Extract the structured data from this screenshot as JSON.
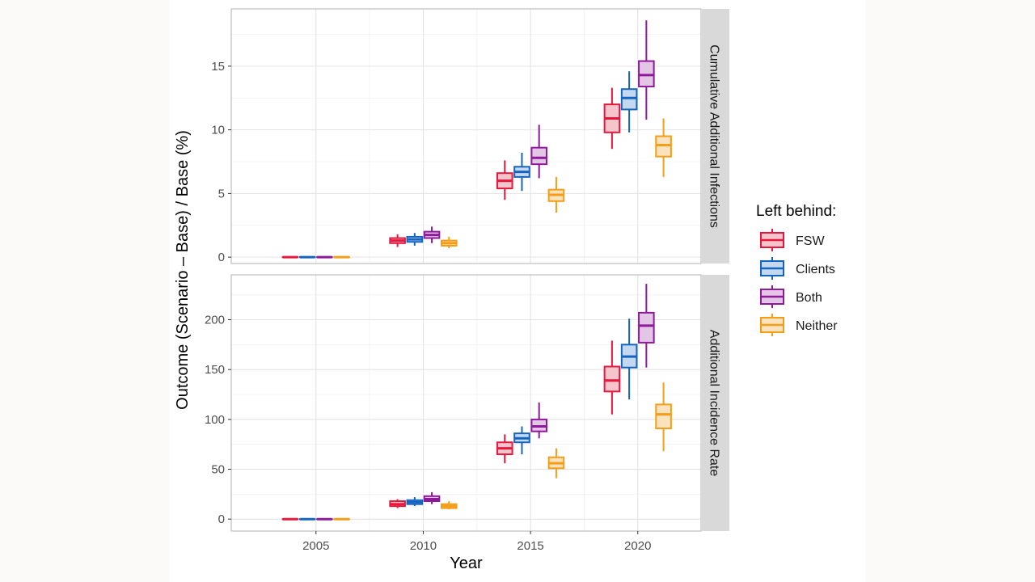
{
  "chart_data": {
    "type": "boxplot",
    "xlabel": "Year",
    "ylabel": "Outcome (Scenario – Base) / Base (%)",
    "x_ticks": [
      2005,
      2010,
      2015,
      2020
    ],
    "legend": {
      "title": "Left behind:",
      "position": "right",
      "entries": [
        {
          "name": "FSW",
          "color": "#e8173c",
          "fill": "#f6c5cc"
        },
        {
          "name": "Clients",
          "color": "#1565c0",
          "fill": "#c4d8ef"
        },
        {
          "name": "Both",
          "color": "#8e1a9a",
          "fill": "#e3c6e6"
        },
        {
          "name": "Neither",
          "color": "#f59d16",
          "fill": "#fde3bd"
        }
      ]
    },
    "grid": true,
    "panels": [
      {
        "strip": "Cumulative Additional Infections",
        "ylim": [
          -0.5,
          19.5
        ],
        "y_ticks": [
          0,
          5,
          10,
          15
        ],
        "groups": [
          {
            "year": 2005,
            "series": "FSW",
            "min": 0,
            "q1": 0,
            "median": 0,
            "q3": 0,
            "max": 0
          },
          {
            "year": 2005,
            "series": "Clients",
            "min": 0,
            "q1": 0,
            "median": 0,
            "q3": 0,
            "max": 0
          },
          {
            "year": 2005,
            "series": "Both",
            "min": 0,
            "q1": 0,
            "median": 0,
            "q3": 0,
            "max": 0
          },
          {
            "year": 2005,
            "series": "Neither",
            "min": 0,
            "q1": 0,
            "median": 0,
            "q3": 0,
            "max": 0
          },
          {
            "year": 2010,
            "series": "FSW",
            "min": 0.8,
            "q1": 1.1,
            "median": 1.3,
            "q3": 1.5,
            "max": 1.8
          },
          {
            "year": 2010,
            "series": "Clients",
            "min": 0.9,
            "q1": 1.2,
            "median": 1.4,
            "q3": 1.6,
            "max": 1.9
          },
          {
            "year": 2010,
            "series": "Both",
            "min": 1.1,
            "q1": 1.5,
            "median": 1.75,
            "q3": 2.0,
            "max": 2.4
          },
          {
            "year": 2010,
            "series": "Neither",
            "min": 0.7,
            "q1": 0.9,
            "median": 1.1,
            "q3": 1.3,
            "max": 1.6
          },
          {
            "year": 2015,
            "series": "FSW",
            "min": 4.5,
            "q1": 5.4,
            "median": 6.0,
            "q3": 6.6,
            "max": 7.6
          },
          {
            "year": 2015,
            "series": "Clients",
            "min": 5.2,
            "q1": 6.3,
            "median": 6.7,
            "q3": 7.1,
            "max": 8.2
          },
          {
            "year": 2015,
            "series": "Both",
            "min": 6.2,
            "q1": 7.3,
            "median": 7.8,
            "q3": 8.6,
            "max": 10.4
          },
          {
            "year": 2015,
            "series": "Neither",
            "min": 3.5,
            "q1": 4.4,
            "median": 4.9,
            "q3": 5.3,
            "max": 6.3
          },
          {
            "year": 2020,
            "series": "FSW",
            "min": 8.5,
            "q1": 9.8,
            "median": 10.9,
            "q3": 12.0,
            "max": 13.3
          },
          {
            "year": 2020,
            "series": "Clients",
            "min": 9.8,
            "q1": 11.6,
            "median": 12.5,
            "q3": 13.2,
            "max": 14.6
          },
          {
            "year": 2020,
            "series": "Both",
            "min": 10.8,
            "q1": 13.4,
            "median": 14.3,
            "q3": 15.4,
            "max": 18.6
          },
          {
            "year": 2020,
            "series": "Neither",
            "min": 6.3,
            "q1": 7.9,
            "median": 8.8,
            "q3": 9.5,
            "max": 10.9
          }
        ]
      },
      {
        "strip": "Additional Incidence Rate",
        "ylim": [
          -12,
          245
        ],
        "y_ticks": [
          0,
          50,
          100,
          150,
          200
        ],
        "groups": [
          {
            "year": 2005,
            "series": "FSW",
            "min": 0,
            "q1": 0,
            "median": 0,
            "q3": 0,
            "max": 0
          },
          {
            "year": 2005,
            "series": "Clients",
            "min": 0,
            "q1": 0,
            "median": 0,
            "q3": 0,
            "max": 0
          },
          {
            "year": 2005,
            "series": "Both",
            "min": 0,
            "q1": 0,
            "median": 0,
            "q3": 0,
            "max": 0
          },
          {
            "year": 2005,
            "series": "Neither",
            "min": 0,
            "q1": 0,
            "median": 0,
            "q3": 0,
            "max": 0
          },
          {
            "year": 2010,
            "series": "FSW",
            "min": 11,
            "q1": 13,
            "median": 15,
            "q3": 18,
            "max": 20
          },
          {
            "year": 2010,
            "series": "Clients",
            "min": 13,
            "q1": 15,
            "median": 17,
            "q3": 19,
            "max": 22
          },
          {
            "year": 2010,
            "series": "Both",
            "min": 15,
            "q1": 18,
            "median": 20,
            "q3": 23,
            "max": 27
          },
          {
            "year": 2010,
            "series": "Neither",
            "min": 10,
            "q1": 11,
            "median": 13,
            "q3": 15,
            "max": 18
          },
          {
            "year": 2015,
            "series": "FSW",
            "min": 56,
            "q1": 65,
            "median": 71,
            "q3": 77,
            "max": 85
          },
          {
            "year": 2015,
            "series": "Clients",
            "min": 65,
            "q1": 77,
            "median": 81,
            "q3": 86,
            "max": 93
          },
          {
            "year": 2015,
            "series": "Both",
            "min": 81,
            "q1": 88,
            "median": 93,
            "q3": 100,
            "max": 117
          },
          {
            "year": 2015,
            "series": "Neither",
            "min": 41,
            "q1": 51,
            "median": 56,
            "q3": 62,
            "max": 71
          },
          {
            "year": 2020,
            "series": "FSW",
            "min": 105,
            "q1": 128,
            "median": 139,
            "q3": 153,
            "max": 179
          },
          {
            "year": 2020,
            "series": "Clients",
            "min": 120,
            "q1": 152,
            "median": 163,
            "q3": 175,
            "max": 201
          },
          {
            "year": 2020,
            "series": "Both",
            "min": 152,
            "q1": 177,
            "median": 194,
            "q3": 207,
            "max": 236
          },
          {
            "year": 2020,
            "series": "Neither",
            "min": 68,
            "q1": 91,
            "median": 105,
            "q3": 115,
            "max": 137
          }
        ]
      }
    ]
  }
}
